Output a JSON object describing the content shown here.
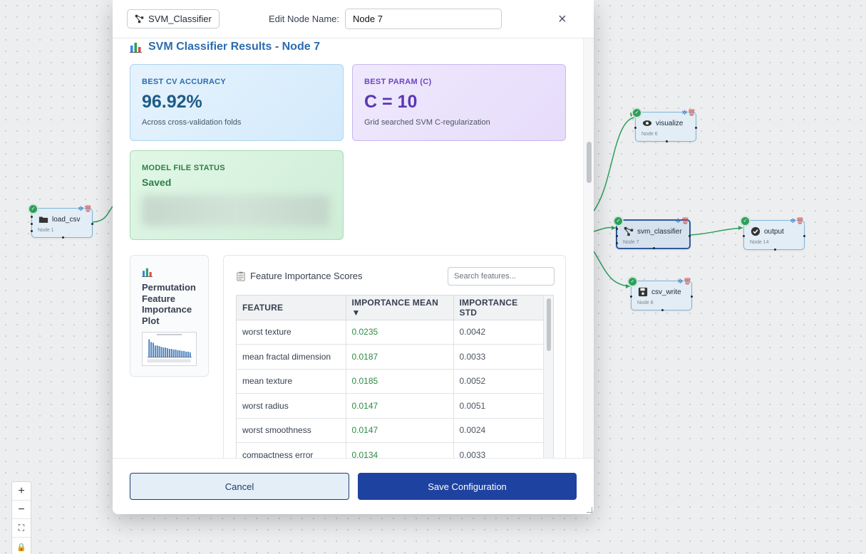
{
  "canvas": {
    "nodes": [
      {
        "id": "load_csv",
        "label": "load_csv",
        "sub": "Node 1",
        "icon": "folder-icon"
      },
      {
        "id": "visualize",
        "label": "visualize",
        "sub": "Node 6",
        "icon": "eye-icon"
      },
      {
        "id": "svm_classifier",
        "label": "svm_classifier",
        "sub": "Node 7",
        "icon": "network-icon"
      },
      {
        "id": "output",
        "label": "output",
        "sub": "Node 14",
        "icon": "check-circle-icon"
      },
      {
        "id": "csv_write",
        "label": "csv_write",
        "sub": "Node 8",
        "icon": "save-icon"
      }
    ],
    "edge_color": "#2e9f5a",
    "zoom_controls": [
      "+",
      "−",
      "⛶",
      "🔒"
    ]
  },
  "modal": {
    "type_label": "SVM_Classifier",
    "edit_label": "Edit Node Name:",
    "node_name": "Node 7",
    "close_symbol": "×",
    "results_title": "SVM Classifier Results - Node 7",
    "cards": {
      "accuracy": {
        "label": "BEST CV ACCURACY",
        "value": "96.92%",
        "desc": "Across cross-validation folds"
      },
      "param": {
        "label": "BEST PARAM (C)",
        "value": "C = 10",
        "desc": "Grid searched SVM C-regularization"
      },
      "model": {
        "label": "MODEL FILE STATUS",
        "value": "Saved"
      }
    },
    "plot": {
      "title": "Permutation Feature Importance Plot"
    },
    "importance": {
      "title": "Feature Importance Scores",
      "search_placeholder": "Search features...",
      "columns": [
        "FEATURE",
        "IMPORTANCE MEAN ▼",
        "IMPORTANCE STD"
      ],
      "rows": [
        {
          "feature": "worst texture",
          "mean": "0.0235",
          "std": "0.0042"
        },
        {
          "feature": "mean fractal dimension",
          "mean": "0.0187",
          "std": "0.0033"
        },
        {
          "feature": "mean texture",
          "mean": "0.0185",
          "std": "0.0052"
        },
        {
          "feature": "worst radius",
          "mean": "0.0147",
          "std": "0.0051"
        },
        {
          "feature": "worst smoothness",
          "mean": "0.0147",
          "std": "0.0024"
        },
        {
          "feature": "compactness error",
          "mean": "0.0134",
          "std": "0.0033"
        }
      ]
    },
    "footer": {
      "cancel": "Cancel",
      "save": "Save Configuration"
    },
    "colors": {
      "primary": "#1e429f",
      "accent_blue": "#2b6cb0",
      "accent_purple": "#6b46c1",
      "accent_green": "#2f7d45"
    }
  }
}
